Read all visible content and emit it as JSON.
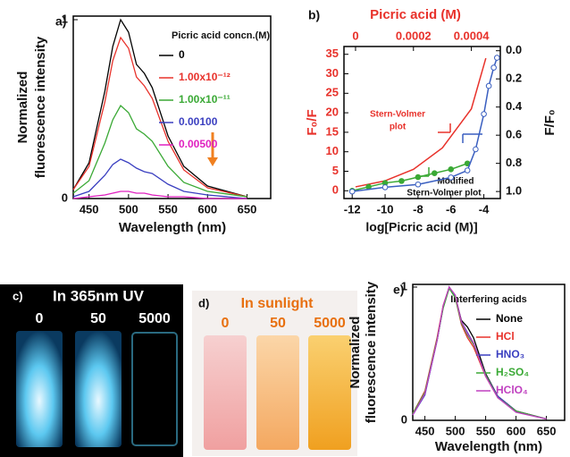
{
  "chart_data": [
    {
      "type": "line",
      "panel_label": "a)",
      "y_label": [
        "Normalized",
        "fluorescence intensity"
      ],
      "x_label": "Wavelength (nm)",
      "legend_title": "Picric acid concn.(M)",
      "x": [
        430,
        450,
        470,
        480,
        490,
        500,
        510,
        520,
        530,
        550,
        570,
        600,
        650
      ],
      "xlim": [
        430,
        680
      ],
      "xticks": [
        450,
        500,
        550,
        600,
        650
      ],
      "ylim": [
        0,
        1.02
      ],
      "yticks": [
        0,
        1
      ],
      "series": [
        {
          "name": "0",
          "color": "#000000",
          "values": [
            0.05,
            0.2,
            0.6,
            0.85,
            1.0,
            0.93,
            0.75,
            0.7,
            0.62,
            0.35,
            0.18,
            0.07,
            0.01
          ]
        },
        {
          "name": "1.00x10⁻¹²",
          "color": "#e8322b",
          "values": [
            0.05,
            0.18,
            0.54,
            0.77,
            0.9,
            0.84,
            0.68,
            0.63,
            0.56,
            0.32,
            0.16,
            0.06,
            0.01
          ]
        },
        {
          "name": "1.00x10⁻¹¹",
          "color": "#3aa935",
          "values": [
            0.03,
            0.1,
            0.31,
            0.44,
            0.52,
            0.48,
            0.39,
            0.36,
            0.32,
            0.18,
            0.09,
            0.04,
            0.01
          ]
        },
        {
          "name": "0.00100",
          "color": "#3a3fc0",
          "values": [
            0.01,
            0.04,
            0.13,
            0.19,
            0.22,
            0.2,
            0.17,
            0.15,
            0.14,
            0.08,
            0.04,
            0.02,
            0
          ]
        },
        {
          "name": "0.00500",
          "color": "#e020c0",
          "values": [
            0,
            0.01,
            0.02,
            0.03,
            0.04,
            0.04,
            0.03,
            0.03,
            0.02,
            0.01,
            0.01,
            0,
            0
          ]
        }
      ]
    },
    {
      "type": "scatter",
      "panel_label": "b)",
      "y_label": "F₀/F",
      "y2_label": "F/F₀",
      "x_label": "log[Picric acid (M)]",
      "x2_label": "Picric acid (M)",
      "annotations": [
        [
          "Stern-Volmer",
          "plot"
        ],
        [
          "Modified",
          "Stern-Volmer plot"
        ]
      ],
      "xlim": [
        -12.5,
        -3
      ],
      "xticks": [
        -12,
        -10,
        -8,
        -6,
        -4
      ],
      "x2lim": [
        -4e-05,
        0.0005
      ],
      "x2ticks": [
        0,
        0.0002,
        0.0004
      ],
      "ylim": [
        -2,
        37
      ],
      "yticks": [
        0,
        5,
        10,
        15,
        20,
        25,
        30,
        35
      ],
      "y2lim": [
        1.05,
        -0.03
      ],
      "y2ticks": [
        {
          "value": 0,
          "label": "0.0"
        },
        0.2,
        0.4,
        0.6,
        0.8,
        {
          "value": 1,
          "label": "1.0"
        }
      ],
      "series": [
        {
          "color": "#e8322b",
          "xaxis": "x2",
          "marker": "none",
          "x": [
            0,
            0.0001,
            0.0002,
            0.0003,
            0.0004,
            0.00045
          ],
          "values": [
            1,
            2.5,
            5.5,
            11,
            21,
            34
          ]
        },
        {
          "color": "#3aa935",
          "marker": "filled",
          "x": [
            -12,
            -11,
            -10,
            -9,
            -8,
            -7,
            -6,
            -5
          ],
          "values": [
            0,
            1,
            2,
            2.5,
            3.5,
            4.5,
            5.5,
            7
          ]
        },
        {
          "color": "#3a5fc0",
          "axis": "y2",
          "marker": "open",
          "x": [
            -12,
            -10,
            -8,
            -6,
            -5,
            -4.5,
            -4,
            -3.7,
            -3.4,
            -3.2
          ],
          "values": [
            1.0,
            0.97,
            0.95,
            0.9,
            0.85,
            0.7,
            0.45,
            0.25,
            0.12,
            0.05
          ]
        }
      ]
    },
    {
      "type": "line",
      "panel_label": "e)",
      "y_label": [
        "Normalized",
        "fluorescence intensity"
      ],
      "x_label": "Wavelength (nm)",
      "legend_title": "Interfering acids",
      "x": [
        430,
        450,
        470,
        480,
        490,
        500,
        510,
        520,
        530,
        550,
        570,
        600,
        650
      ],
      "xlim": [
        430,
        680
      ],
      "xticks": [
        450,
        500,
        550,
        600,
        650
      ],
      "ylim": [
        0,
        1.02
      ],
      "yticks": [
        0,
        1
      ],
      "series": [
        {
          "name": "None",
          "color": "#000000",
          "values": [
            0.05,
            0.2,
            0.6,
            0.85,
            1.0,
            0.93,
            0.75,
            0.7,
            0.62,
            0.35,
            0.18,
            0.07,
            0.01
          ]
        },
        {
          "name": "HCl",
          "color": "#e8322b",
          "values": [
            0.05,
            0.22,
            0.62,
            0.86,
            1.0,
            0.92,
            0.72,
            0.62,
            0.55,
            0.33,
            0.17,
            0.07,
            0.01
          ]
        },
        {
          "name": "HNO₃",
          "color": "#3a3fc0",
          "values": [
            0.04,
            0.19,
            0.6,
            0.85,
            1.0,
            0.93,
            0.74,
            0.66,
            0.58,
            0.34,
            0.18,
            0.07,
            0.01
          ]
        },
        {
          "name": "H₂SO₄",
          "color": "#3aa935",
          "values": [
            0.05,
            0.21,
            0.61,
            0.84,
            0.99,
            0.92,
            0.73,
            0.64,
            0.57,
            0.34,
            0.17,
            0.07,
            0.01
          ]
        },
        {
          "name": "HClO₄",
          "color": "#c040c0",
          "values": [
            0.04,
            0.2,
            0.6,
            0.86,
            1.0,
            0.94,
            0.74,
            0.65,
            0.58,
            0.33,
            0.17,
            0.06,
            0.01
          ]
        }
      ]
    }
  ],
  "photos": [
    {
      "label": "c)",
      "caption": "In 365nm UV",
      "vials": [
        "0",
        "50",
        "5000"
      ]
    },
    {
      "label": "d)",
      "caption": "In sunlight",
      "vials": [
        "0",
        "50",
        "5000"
      ]
    }
  ]
}
